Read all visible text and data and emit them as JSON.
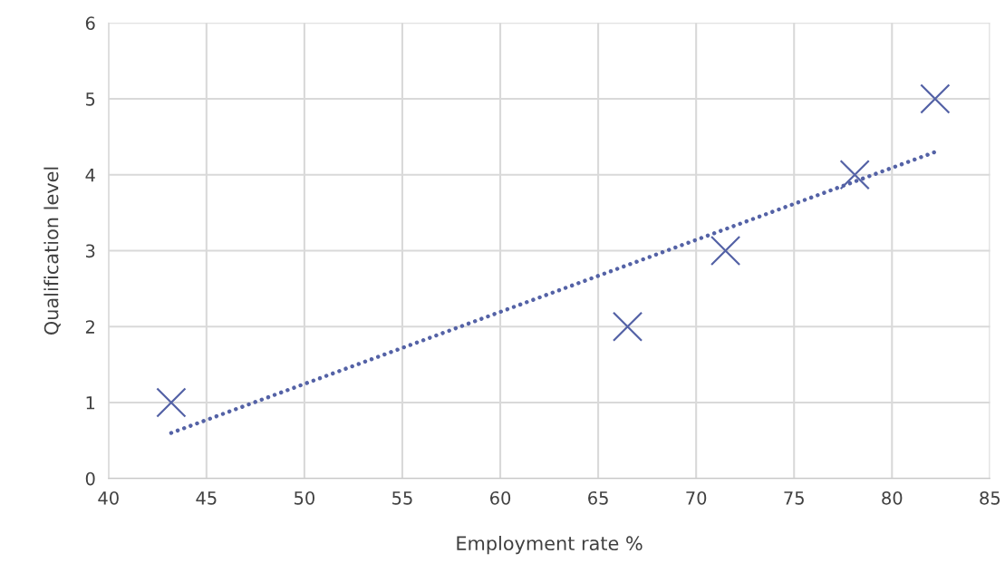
{
  "chart_data": {
    "type": "scatter",
    "xlabel": "Employment rate %",
    "ylabel": "Qualification level",
    "series": [
      {
        "color": "#5462a6",
        "marker": "cross",
        "x": [
          43.2,
          66.5,
          71.5,
          78.1,
          82.2
        ],
        "values": [
          1,
          2,
          3,
          4,
          5
        ]
      },
      {
        "type": "line",
        "color": "#5462a6",
        "marker": "none",
        "line_style": "dotted",
        "x": [
          43.2,
          82.2
        ],
        "values": [
          0.6,
          4.3
        ]
      }
    ],
    "xlim": [
      40,
      85
    ],
    "xticks": [
      40,
      45,
      50,
      55,
      60,
      65,
      70,
      75,
      80,
      85
    ],
    "ylim": [
      0,
      6
    ],
    "yticks": [
      0,
      1,
      2,
      3,
      4,
      5,
      6
    ],
    "grid": true,
    "legend": false
  }
}
